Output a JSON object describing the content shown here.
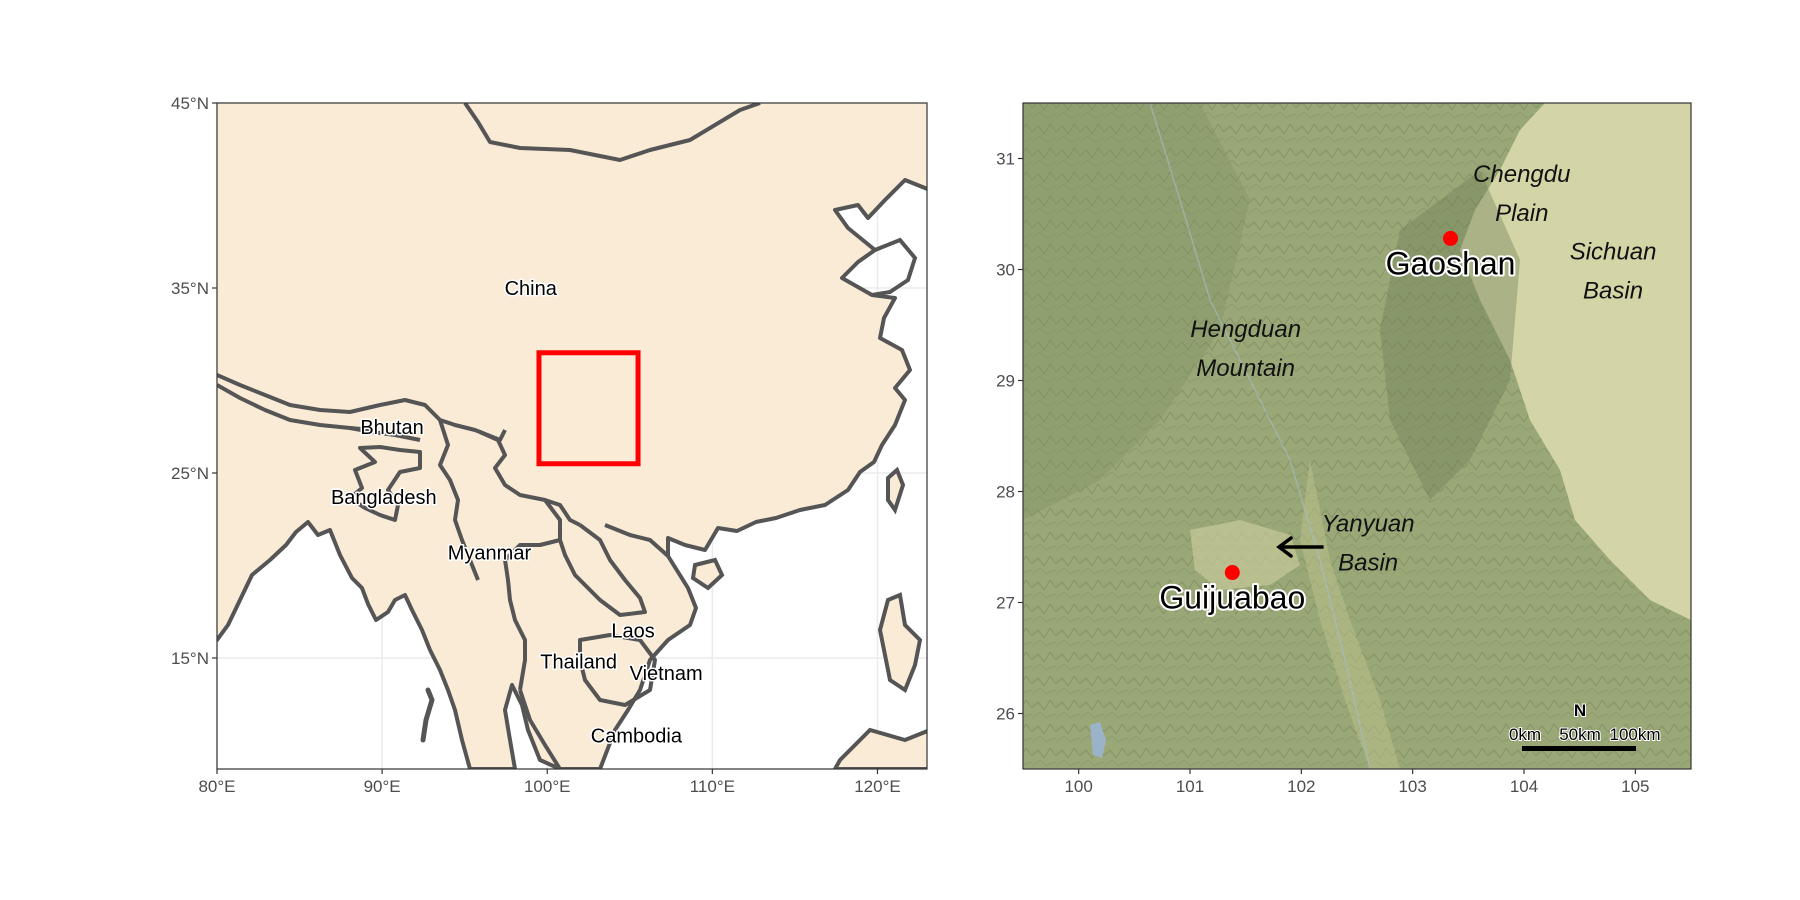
{
  "left_map": {
    "x_ticks": [
      {
        "value": 80,
        "label": "80°E"
      },
      {
        "value": 90,
        "label": "90°E"
      },
      {
        "value": 100,
        "label": "100°E"
      },
      {
        "value": 110,
        "label": "110°E"
      },
      {
        "value": 120,
        "label": "120°E"
      }
    ],
    "y_ticks": [
      {
        "value": 45,
        "label": "45°N"
      },
      {
        "value": 35,
        "label": "35°N"
      },
      {
        "value": 25,
        "label": "25°N"
      },
      {
        "value": 15,
        "label": "15°N"
      }
    ],
    "xlim": [
      80,
      123
    ],
    "ylim": [
      9,
      45
    ],
    "colors": {
      "land": "#faebd7",
      "border": "#555555",
      "grid": "#ebebeb",
      "study_box": "#ff0000"
    },
    "countries": [
      {
        "name": "China",
        "lon": 99,
        "lat": 35
      },
      {
        "name": "Bhutan",
        "lon": 90.6,
        "lat": 27.5
      },
      {
        "name": "Bangladesh",
        "lon": 90.1,
        "lat": 23.7
      },
      {
        "name": "Myanmar",
        "lon": 96.5,
        "lat": 20.7
      },
      {
        "name": "Laos",
        "lon": 105.2,
        "lat": 16.5
      },
      {
        "name": "Thailand",
        "lon": 101.9,
        "lat": 14.8
      },
      {
        "name": "Vietnam",
        "lon": 107.2,
        "lat": 14.2
      },
      {
        "name": "Cambodia",
        "lon": 105.4,
        "lat": 10.8
      }
    ],
    "study_box": {
      "lon_min": 99.5,
      "lon_max": 105.5,
      "lat_min": 25.5,
      "lat_max": 31.5
    }
  },
  "right_map": {
    "x_ticks": [
      {
        "value": 100,
        "label": "100"
      },
      {
        "value": 101,
        "label": "101"
      },
      {
        "value": 102,
        "label": "102"
      },
      {
        "value": 103,
        "label": "103"
      },
      {
        "value": 104,
        "label": "104"
      },
      {
        "value": 105,
        "label": "105"
      }
    ],
    "y_ticks": [
      {
        "value": 26,
        "label": "26"
      },
      {
        "value": 27,
        "label": "27"
      },
      {
        "value": 28,
        "label": "28"
      },
      {
        "value": 29,
        "label": "29"
      },
      {
        "value": 30,
        "label": "30"
      },
      {
        "value": 31,
        "label": "31"
      }
    ],
    "xlim": [
      99.5,
      105.5
    ],
    "ylim": [
      25.5,
      31.5
    ],
    "sites": [
      {
        "name": "Gaoshan",
        "lon": 103.34,
        "lat": 30.28
      },
      {
        "name": "Guijuabao",
        "lon": 101.38,
        "lat": 27.27
      }
    ],
    "regions": [
      {
        "lines": [
          "Chengdu",
          "Plain"
        ],
        "lon": 103.98,
        "lat": 30.7
      },
      {
        "lines": [
          "Sichuan",
          "Basin"
        ],
        "lon": 104.8,
        "lat": 30.0
      },
      {
        "lines": [
          "Hengduan",
          "Mountain"
        ],
        "lon": 101.5,
        "lat": 29.3
      },
      {
        "lines": [
          "Yanyuan",
          "Basin"
        ],
        "lon": 102.6,
        "lat": 27.55
      }
    ],
    "arrow": {
      "from_lon": 102.2,
      "from_lat": 27.5,
      "to_lon": 101.8,
      "to_lat": 27.5
    },
    "site_color": "#ff0000",
    "scale_bar": {
      "labels": [
        "0km",
        "50km",
        "100km"
      ],
      "north": "N"
    }
  }
}
